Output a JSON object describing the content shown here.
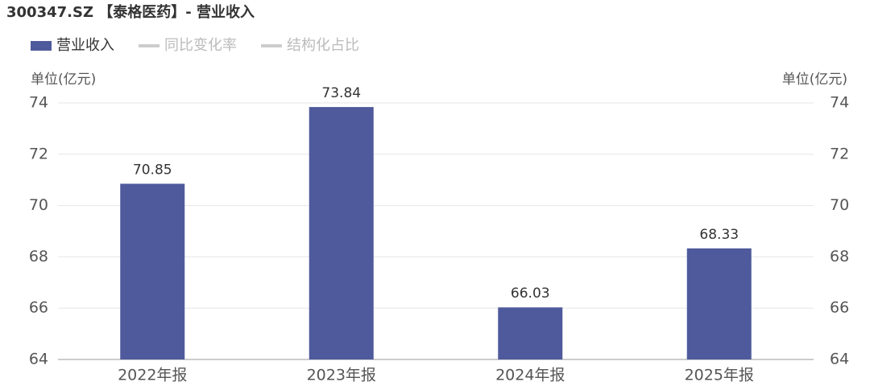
{
  "chart_data": {
    "type": "bar",
    "title": "300347.SZ 【泰格医药】- 营业收入",
    "ylabel": "单位(亿元)",
    "y2label": "单位(亿元)",
    "categories": [
      "2022年报",
      "2023年报",
      "2024年报",
      "2025年报"
    ],
    "series": [
      {
        "name": "营业收入",
        "color": "#4f5a9c",
        "values": [
          70.85,
          73.84,
          66.03,
          68.33
        ],
        "visible": true
      },
      {
        "name": "同比变化率",
        "color": "#cccccc",
        "values": [
          null,
          null,
          null,
          null
        ],
        "visible": false,
        "axis": "y2"
      },
      {
        "name": "结构化占比",
        "color": "#cccccc",
        "values": [
          null,
          null,
          null,
          null
        ],
        "visible": false,
        "axis": "y2"
      }
    ],
    "ylim": [
      64,
      74
    ],
    "yticks": [
      64,
      66,
      68,
      70,
      72,
      74
    ],
    "y2lim": [
      64,
      74
    ],
    "y2ticks": [
      64,
      66,
      68,
      70,
      72,
      74
    ],
    "grid": true
  }
}
